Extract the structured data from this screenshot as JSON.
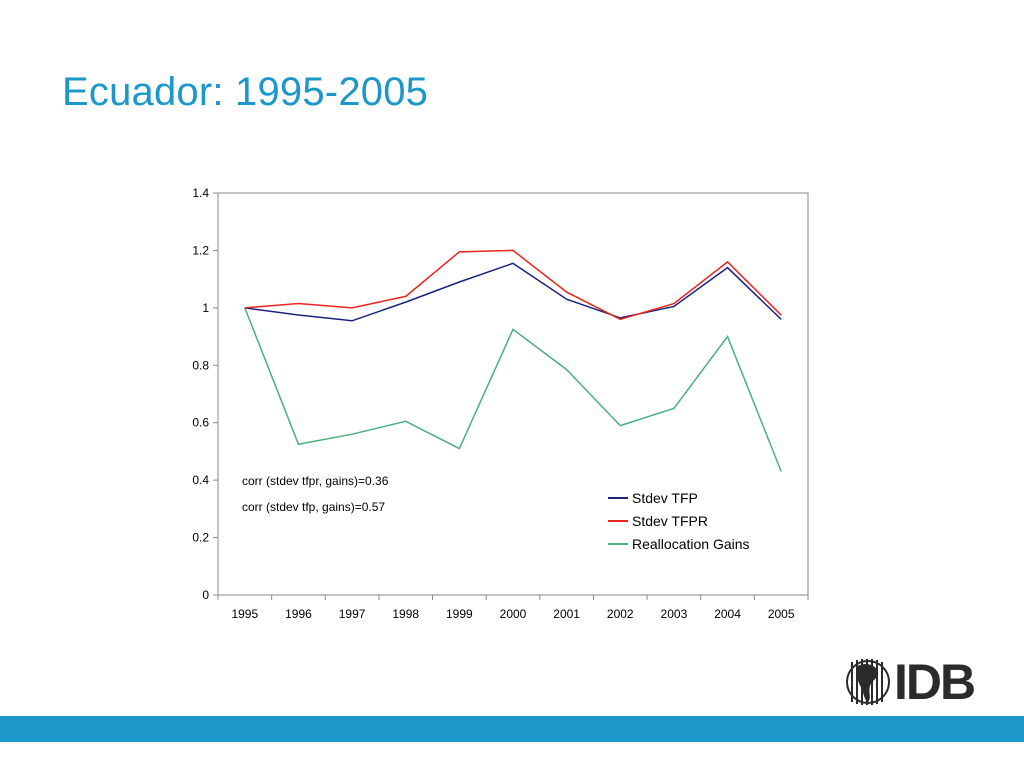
{
  "slide": {
    "title": "Ecuador: 1995-2005"
  },
  "colors": {
    "title": "#1c97c9",
    "bar": "#1c97c9",
    "tfp": "#1a237e",
    "tfpr": "#e8261f",
    "gains": "#4caf7d"
  },
  "logo": {
    "text": "IDB",
    "icon": "globe-icon"
  },
  "chart_data": {
    "type": "line",
    "x": [
      "1995",
      "1996",
      "1997",
      "1998",
      "1999",
      "2000",
      "2001",
      "2002",
      "2003",
      "2004",
      "2005"
    ],
    "ylim": [
      0,
      1.4
    ],
    "yticks": [
      "0",
      "0.2",
      "0.4",
      "0.6",
      "0.8",
      "1",
      "1.2",
      "1.4"
    ],
    "grid": false,
    "legend_position": "bottom-right",
    "series": [
      {
        "name": "Stdev TFP",
        "color": "#1a237e",
        "values": [
          1.0,
          0.975,
          0.955,
          1.02,
          1.09,
          1.155,
          1.03,
          0.965,
          1.005,
          1.14,
          0.96
        ]
      },
      {
        "name": "Stdev TFPR",
        "color": "#e8261f",
        "values": [
          1.0,
          1.015,
          1.0,
          1.04,
          1.195,
          1.2,
          1.055,
          0.96,
          1.015,
          1.16,
          0.975
        ]
      },
      {
        "name": "Reallocation Gains",
        "color": "#4caf7d",
        "values": [
          1.0,
          0.525,
          0.56,
          0.605,
          0.51,
          0.925,
          0.785,
          0.59,
          0.65,
          0.9,
          0.43
        ]
      }
    ],
    "annotations": [
      "corr (stdev tfpr, gains)=0.36",
      "corr (stdev tfp, gains)=0.57"
    ]
  }
}
